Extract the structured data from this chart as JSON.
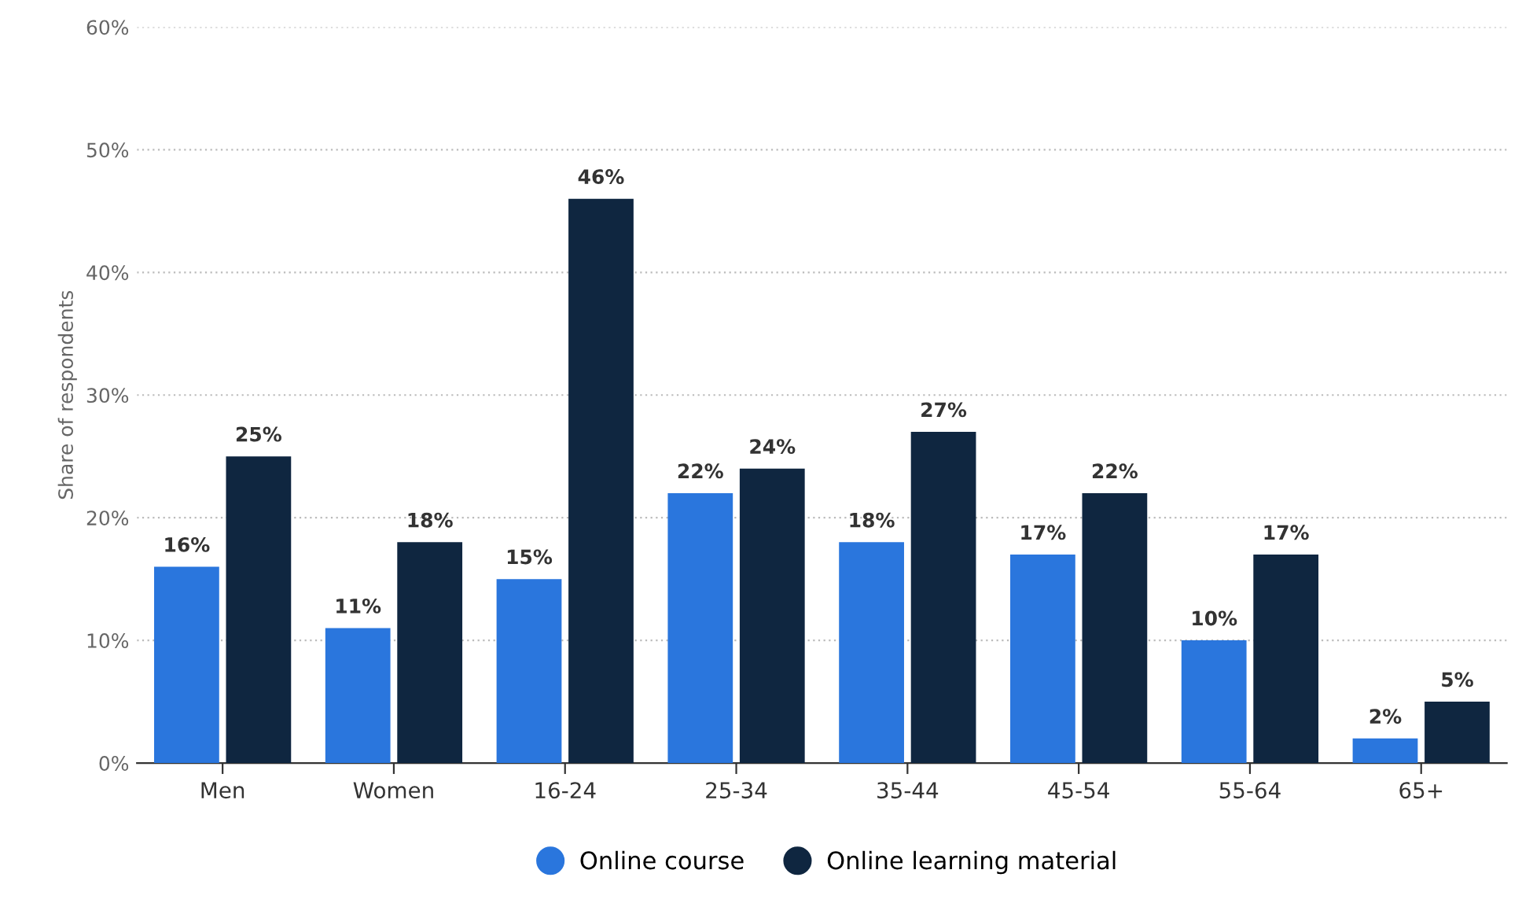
{
  "chart_data": {
    "type": "bar",
    "ylabel": "Share of respondents",
    "categories": [
      "Men",
      "Women",
      "16-24",
      "25-34",
      "35-44",
      "45-54",
      "55-64",
      "65+"
    ],
    "series": [
      {
        "name": "Online course",
        "color": "#2a76dd",
        "values": [
          16,
          11,
          15,
          22,
          18,
          17,
          10,
          2
        ],
        "value_labels": [
          "16%",
          "11%",
          "15%",
          "22%",
          "18%",
          "17%",
          "10%",
          "2%"
        ]
      },
      {
        "name": "Online learning material",
        "color": "#0f2640",
        "values": [
          25,
          18,
          46,
          24,
          27,
          22,
          17,
          5
        ],
        "value_labels": [
          "25%",
          "18%",
          "46%",
          "24%",
          "27%",
          "22%",
          "17%",
          "5%"
        ]
      }
    ],
    "ylim": [
      0,
      60
    ],
    "yticks": [
      {
        "value": 0,
        "label": "0%"
      },
      {
        "value": 10,
        "label": "10%"
      },
      {
        "value": 20,
        "label": "20%"
      },
      {
        "value": 30,
        "label": "30%"
      },
      {
        "value": 40,
        "label": "40%"
      },
      {
        "value": 50,
        "label": "50%"
      },
      {
        "value": 60,
        "label": "60%"
      }
    ],
    "grid": "y",
    "legend": "bottom"
  }
}
